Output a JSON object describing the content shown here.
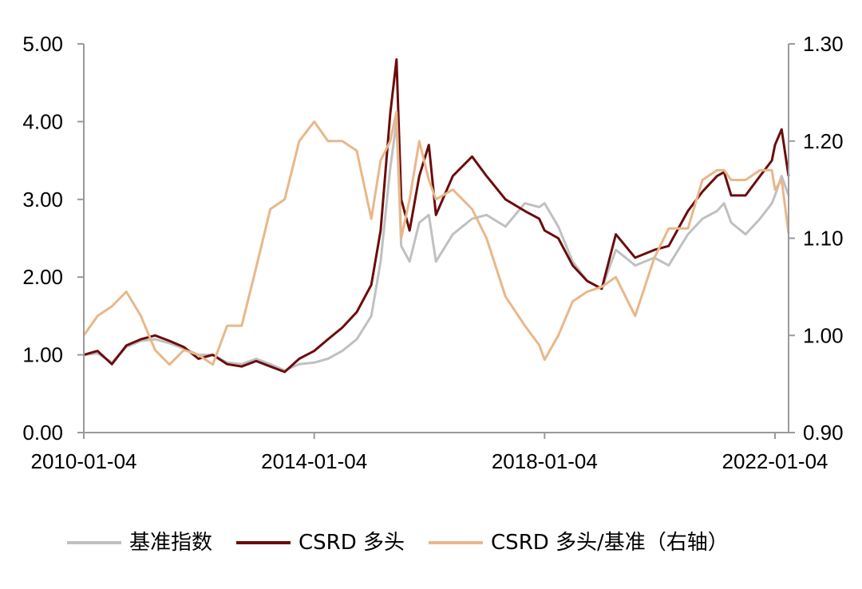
{
  "chart_data": {
    "type": "line",
    "x_ticks": [
      "2010-01-04",
      "2014-01-04",
      "2018-01-04",
      "2022-01-04"
    ],
    "x_range": [
      "2010-01-04",
      "2022-03-31"
    ],
    "y_left": {
      "ticks": [
        "0.00",
        "1.00",
        "2.00",
        "3.00",
        "4.00",
        "5.00"
      ],
      "range": [
        0,
        5
      ]
    },
    "y_right": {
      "ticks": [
        "0.90",
        "1.00",
        "1.10",
        "1.20",
        "1.30"
      ],
      "range": [
        0.9,
        1.3
      ]
    },
    "grid": false,
    "legend_position": "bottom",
    "series": [
      {
        "name": "基准指数",
        "axis": "left",
        "color": "#c0c0c0",
        "points": [
          [
            "2010-01-04",
            1.0
          ],
          [
            "2010-04-01",
            1.02
          ],
          [
            "2010-07-01",
            0.9
          ],
          [
            "2010-10-01",
            1.1
          ],
          [
            "2011-01-01",
            1.18
          ],
          [
            "2011-04-01",
            1.2
          ],
          [
            "2011-07-01",
            1.15
          ],
          [
            "2011-10-01",
            1.08
          ],
          [
            "2012-01-01",
            1.0
          ],
          [
            "2012-04-01",
            1.0
          ],
          [
            "2012-07-01",
            0.9
          ],
          [
            "2012-10-01",
            0.88
          ],
          [
            "2013-01-01",
            0.95
          ],
          [
            "2013-04-01",
            0.88
          ],
          [
            "2013-07-01",
            0.8
          ],
          [
            "2013-10-01",
            0.88
          ],
          [
            "2014-01-04",
            0.9
          ],
          [
            "2014-04-01",
            0.95
          ],
          [
            "2014-07-01",
            1.05
          ],
          [
            "2014-10-01",
            1.2
          ],
          [
            "2015-01-01",
            1.5
          ],
          [
            "2015-03-01",
            2.2
          ],
          [
            "2015-05-01",
            3.4
          ],
          [
            "2015-06-10",
            4.0
          ],
          [
            "2015-07-10",
            2.4
          ],
          [
            "2015-09-01",
            2.2
          ],
          [
            "2015-11-01",
            2.7
          ],
          [
            "2016-01-01",
            2.8
          ],
          [
            "2016-02-15",
            2.2
          ],
          [
            "2016-06-01",
            2.55
          ],
          [
            "2016-10-01",
            2.75
          ],
          [
            "2017-01-01",
            2.8
          ],
          [
            "2017-05-01",
            2.65
          ],
          [
            "2017-09-01",
            2.95
          ],
          [
            "2017-12-01",
            2.9
          ],
          [
            "2018-01-04",
            2.95
          ],
          [
            "2018-04-01",
            2.65
          ],
          [
            "2018-07-01",
            2.2
          ],
          [
            "2018-10-01",
            1.95
          ],
          [
            "2019-01-01",
            1.85
          ],
          [
            "2019-04-01",
            2.35
          ],
          [
            "2019-08-01",
            2.15
          ],
          [
            "2019-12-01",
            2.25
          ],
          [
            "2020-03-01",
            2.15
          ],
          [
            "2020-07-01",
            2.55
          ],
          [
            "2020-10-01",
            2.75
          ],
          [
            "2021-01-01",
            2.85
          ],
          [
            "2021-02-15",
            2.95
          ],
          [
            "2021-04-01",
            2.7
          ],
          [
            "2021-07-01",
            2.55
          ],
          [
            "2021-10-01",
            2.75
          ],
          [
            "2021-12-15",
            2.95
          ],
          [
            "2022-01-04",
            3.05
          ],
          [
            "2022-02-15",
            3.3
          ],
          [
            "2022-03-31",
            3.05
          ]
        ]
      },
      {
        "name": "CSRD 多头",
        "axis": "left",
        "color": "#6b0c0c",
        "points": [
          [
            "2010-01-04",
            1.0
          ],
          [
            "2010-04-01",
            1.05
          ],
          [
            "2010-07-01",
            0.88
          ],
          [
            "2010-10-01",
            1.12
          ],
          [
            "2011-01-01",
            1.2
          ],
          [
            "2011-04-01",
            1.25
          ],
          [
            "2011-07-01",
            1.18
          ],
          [
            "2011-10-01",
            1.1
          ],
          [
            "2012-01-01",
            0.95
          ],
          [
            "2012-04-01",
            1.0
          ],
          [
            "2012-07-01",
            0.88
          ],
          [
            "2012-10-01",
            0.85
          ],
          [
            "2013-01-01",
            0.92
          ],
          [
            "2013-04-01",
            0.85
          ],
          [
            "2013-07-01",
            0.78
          ],
          [
            "2013-10-01",
            0.95
          ],
          [
            "2014-01-04",
            1.05
          ],
          [
            "2014-04-01",
            1.2
          ],
          [
            "2014-07-01",
            1.35
          ],
          [
            "2014-10-01",
            1.55
          ],
          [
            "2015-01-01",
            1.9
          ],
          [
            "2015-03-01",
            2.6
          ],
          [
            "2015-05-01",
            4.1
          ],
          [
            "2015-06-10",
            4.8
          ],
          [
            "2015-07-10",
            3.0
          ],
          [
            "2015-09-01",
            2.6
          ],
          [
            "2015-11-01",
            3.3
          ],
          [
            "2016-01-01",
            3.7
          ],
          [
            "2016-02-15",
            2.8
          ],
          [
            "2016-06-01",
            3.3
          ],
          [
            "2016-10-01",
            3.55
          ],
          [
            "2017-01-01",
            3.3
          ],
          [
            "2017-05-01",
            3.0
          ],
          [
            "2017-09-01",
            2.85
          ],
          [
            "2017-12-01",
            2.75
          ],
          [
            "2018-01-04",
            2.6
          ],
          [
            "2018-04-01",
            2.5
          ],
          [
            "2018-07-01",
            2.15
          ],
          [
            "2018-10-01",
            1.95
          ],
          [
            "2019-01-01",
            1.85
          ],
          [
            "2019-04-01",
            2.55
          ],
          [
            "2019-08-01",
            2.25
          ],
          [
            "2019-12-01",
            2.35
          ],
          [
            "2020-03-01",
            2.4
          ],
          [
            "2020-07-01",
            2.85
          ],
          [
            "2020-10-01",
            3.1
          ],
          [
            "2021-01-01",
            3.3
          ],
          [
            "2021-02-15",
            3.35
          ],
          [
            "2021-04-01",
            3.05
          ],
          [
            "2021-07-01",
            3.05
          ],
          [
            "2021-10-01",
            3.3
          ],
          [
            "2021-12-15",
            3.5
          ],
          [
            "2022-01-04",
            3.7
          ],
          [
            "2022-02-15",
            3.9
          ],
          [
            "2022-03-31",
            3.3
          ]
        ]
      },
      {
        "name": "CSRD 多头/基准（右轴）",
        "axis": "right",
        "color": "#e8b78a",
        "points": [
          [
            "2010-01-04",
            1.0
          ],
          [
            "2010-04-01",
            1.02
          ],
          [
            "2010-07-01",
            1.03
          ],
          [
            "2010-10-01",
            1.045
          ],
          [
            "2011-01-01",
            1.02
          ],
          [
            "2011-04-01",
            0.985
          ],
          [
            "2011-07-01",
            0.97
          ],
          [
            "2011-10-01",
            0.985
          ],
          [
            "2012-01-01",
            0.98
          ],
          [
            "2012-04-01",
            0.97
          ],
          [
            "2012-07-01",
            1.01
          ],
          [
            "2012-10-01",
            1.01
          ],
          [
            "2013-01-01",
            1.07
          ],
          [
            "2013-04-01",
            1.13
          ],
          [
            "2013-07-01",
            1.14
          ],
          [
            "2013-10-01",
            1.2
          ],
          [
            "2014-01-04",
            1.22
          ],
          [
            "2014-04-01",
            1.2
          ],
          [
            "2014-07-01",
            1.2
          ],
          [
            "2014-10-01",
            1.19
          ],
          [
            "2015-01-01",
            1.12
          ],
          [
            "2015-03-01",
            1.18
          ],
          [
            "2015-05-01",
            1.2
          ],
          [
            "2015-06-10",
            1.23
          ],
          [
            "2015-07-10",
            1.1
          ],
          [
            "2015-09-01",
            1.14
          ],
          [
            "2015-11-01",
            1.2
          ],
          [
            "2016-01-01",
            1.16
          ],
          [
            "2016-02-15",
            1.14
          ],
          [
            "2016-06-01",
            1.15
          ],
          [
            "2016-10-01",
            1.13
          ],
          [
            "2017-01-01",
            1.1
          ],
          [
            "2017-05-01",
            1.04
          ],
          [
            "2017-09-01",
            1.01
          ],
          [
            "2017-12-01",
            0.99
          ],
          [
            "2018-01-04",
            0.975
          ],
          [
            "2018-04-01",
            1.0
          ],
          [
            "2018-07-01",
            1.035
          ],
          [
            "2018-10-01",
            1.045
          ],
          [
            "2019-01-01",
            1.05
          ],
          [
            "2019-04-01",
            1.06
          ],
          [
            "2019-08-01",
            1.02
          ],
          [
            "2019-12-01",
            1.08
          ],
          [
            "2020-03-01",
            1.11
          ],
          [
            "2020-07-01",
            1.11
          ],
          [
            "2020-10-01",
            1.16
          ],
          [
            "2021-01-01",
            1.17
          ],
          [
            "2021-02-15",
            1.17
          ],
          [
            "2021-04-01",
            1.16
          ],
          [
            "2021-07-01",
            1.16
          ],
          [
            "2021-10-01",
            1.17
          ],
          [
            "2021-12-15",
            1.17
          ],
          [
            "2022-01-04",
            1.15
          ],
          [
            "2022-02-15",
            1.16
          ],
          [
            "2022-03-31",
            1.105
          ]
        ]
      }
    ]
  }
}
